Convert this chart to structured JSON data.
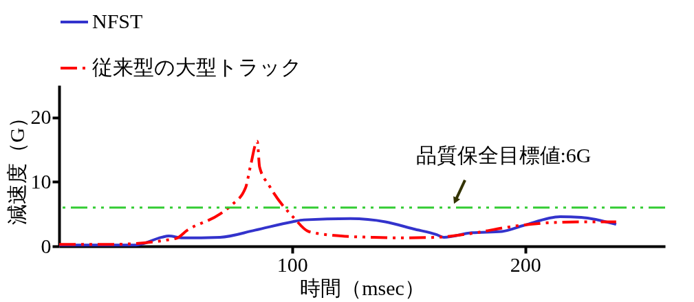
{
  "chart_data": {
    "type": "line",
    "xlabel": "時間（msec）",
    "ylabel": "減速度（G）",
    "xlim": [
      0,
      260
    ],
    "ylim": [
      0,
      25
    ],
    "xticks": [
      100,
      200
    ],
    "yticks": [
      0,
      10,
      20
    ],
    "grid": false,
    "legend": "top",
    "marker": "none",
    "series": [
      {
        "name": "NFST",
        "color": "#3333cc",
        "line_style": "solid",
        "x": [
          0,
          33,
          44,
          47,
          53,
          69,
          84,
          100,
          105,
          125,
          140,
          152,
          162,
          165,
          177,
          190,
          199,
          215,
          224,
          239
        ],
        "values": [
          0.2,
          0.2,
          1.4,
          1.6,
          1.3,
          1.4,
          2.5,
          3.8,
          4.1,
          4.3,
          3.8,
          2.7,
          1.8,
          1.4,
          2.1,
          2.3,
          3.2,
          4.6,
          4.5,
          3.4
        ]
      },
      {
        "name": "従来型の大型トラック",
        "color": "#ff0000",
        "line_style": "dashdotdot",
        "x": [
          0,
          22,
          50,
          55,
          69,
          74,
          80,
          82,
          85,
          86,
          90,
          101,
          107,
          121,
          134,
          146,
          162,
          177,
          193,
          208,
          224,
          239
        ],
        "values": [
          0.3,
          0.3,
          1.2,
          2.5,
          5.0,
          6.4,
          9.1,
          12.3,
          16.3,
          12.3,
          9.5,
          4.3,
          2.3,
          1.6,
          1.4,
          1.3,
          1.4,
          2.0,
          3.0,
          3.6,
          3.8,
          3.8
        ]
      }
    ],
    "ref_lines": [
      {
        "axis": "y",
        "value": 6,
        "color": "#33cc33",
        "line_style": "dashdotdot"
      }
    ],
    "annotations": [
      {
        "text": "品質保全目標値:6G",
        "x": 170,
        "y": 6
      }
    ]
  }
}
